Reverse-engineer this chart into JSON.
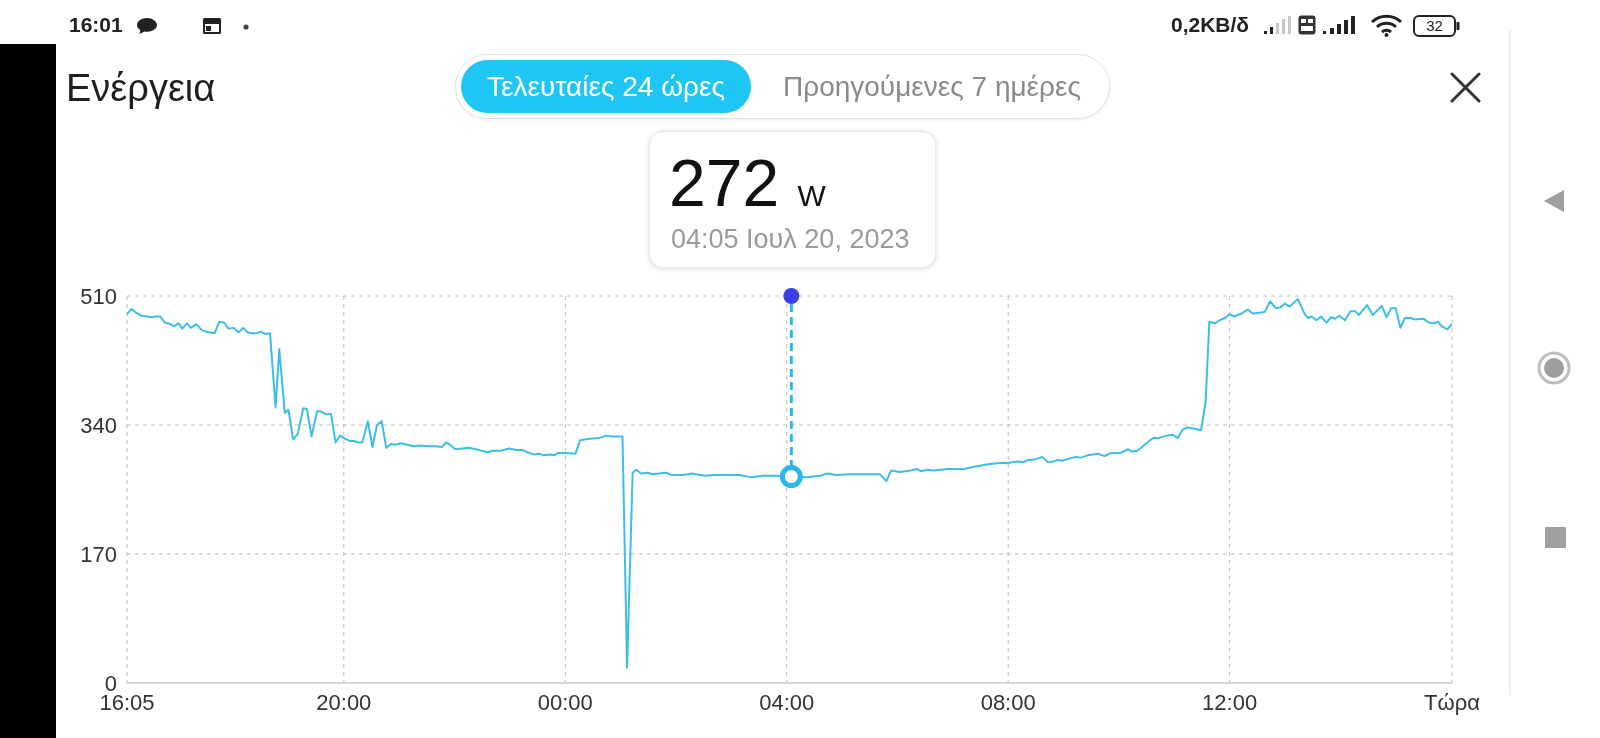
{
  "chart_data": {
    "type": "line",
    "title": "Ενέργεια",
    "annotations": [
      "16:01",
      "0,2KB/δ",
      "32",
      "Τελευταίες 24 ώρες",
      "Προηγούμενες 7 ημέρες",
      "272 W",
      "04:05 Ιουλ 20, 2023"
    ],
    "x": [
      "2023-07-19T16:05",
      "2023-07-19T16:10",
      "2023-07-19T16:16",
      "2023-07-19T16:21",
      "2023-07-19T16:26",
      "2023-07-19T16:32",
      "2023-07-19T16:35",
      "2023-07-19T16:41",
      "2023-07-19T16:46",
      "2023-07-19T16:52",
      "2023-07-19T16:56",
      "2023-07-19T17:01",
      "2023-07-19T17:05",
      "2023-07-19T17:10",
      "2023-07-19T17:14",
      "2023-07-19T17:20",
      "2023-07-19T17:26",
      "2023-07-19T17:31",
      "2023-07-19T17:40",
      "2023-07-19T17:45",
      "2023-07-19T17:50",
      "2023-07-19T17:55",
      "2023-07-19T18:01",
      "2023-07-19T18:06",
      "2023-07-19T18:11",
      "2023-07-19T18:16",
      "2023-07-19T18:20",
      "2023-07-19T18:26",
      "2023-07-19T18:30",
      "2023-07-19T18:35",
      "2023-07-19T18:40",
      "2023-07-19T18:46",
      "2023-07-19T18:50",
      "2023-07-19T18:56",
      "2023-07-19T19:00",
      "2023-07-19T19:05",
      "2023-07-19T19:10",
      "2023-07-19T19:16",
      "2023-07-19T19:20",
      "2023-07-19T19:25",
      "2023-07-19T19:31",
      "2023-07-19T19:35",
      "2023-07-19T19:41",
      "2023-07-19T19:46",
      "2023-07-19T19:51",
      "2023-07-19T19:56",
      "2023-07-19T20:01",
      "2023-07-19T20:06",
      "2023-07-19T20:11",
      "2023-07-19T20:16",
      "2023-07-19T20:20",
      "2023-07-19T20:26",
      "2023-07-19T20:31",
      "2023-07-19T20:36",
      "2023-07-19T20:41",
      "2023-07-19T20:46",
      "2023-07-19T20:51",
      "2023-07-19T20:56",
      "2023-07-19T21:02",
      "2023-07-19T21:09",
      "2023-07-19T21:16",
      "2023-07-19T21:23",
      "2023-07-19T21:31",
      "2023-07-19T21:40",
      "2023-07-19T21:46",
      "2023-07-19T21:51",
      "2023-07-19T21:56",
      "2023-07-19T22:01",
      "2023-07-19T22:08",
      "2023-07-19T22:16",
      "2023-07-19T22:23",
      "2023-07-19T22:29",
      "2023-07-19T22:36",
      "2023-07-19T22:41",
      "2023-07-19T22:50",
      "2023-07-19T22:59",
      "2023-07-19T23:07",
      "2023-07-19T23:14",
      "2023-07-19T23:19",
      "2023-07-19T23:26",
      "2023-07-19T23:32",
      "2023-07-19T23:37",
      "2023-07-19T23:43",
      "2023-07-19T23:48",
      "2023-07-19T23:52",
      "2023-07-20T00:00",
      "2023-07-20T00:11",
      "2023-07-20T00:16",
      "2023-07-20T00:26",
      "2023-07-20T00:37",
      "2023-07-20T00:44",
      "2023-07-20T00:50",
      "2023-07-20T01:02",
      "2023-07-20T01:07",
      "2023-07-20T01:13",
      "2023-07-20T01:17",
      "2023-07-20T01:22",
      "2023-07-20T01:29",
      "2023-07-20T01:35",
      "2023-07-20T01:49",
      "2023-07-20T01:56",
      "2023-07-20T02:08",
      "2023-07-20T02:17",
      "2023-07-20T02:31",
      "2023-07-20T02:42",
      "2023-07-20T02:58",
      "2023-07-20T03:09",
      "2023-07-20T03:22",
      "2023-07-20T03:34",
      "2023-07-20T03:49",
      "2023-07-20T04:05",
      "2023-07-20T04:22",
      "2023-07-20T04:36",
      "2023-07-20T04:44",
      "2023-07-20T04:54",
      "2023-07-20T05:08",
      "2023-07-20T05:23",
      "2023-07-20T05:41",
      "2023-07-20T05:48",
      "2023-07-20T05:53",
      "2023-07-20T06:03",
      "2023-07-20T06:14",
      "2023-07-20T06:21",
      "2023-07-20T06:26",
      "2023-07-20T06:32",
      "2023-07-20T06:39",
      "2023-07-20T06:54",
      "2023-07-20T07:12",
      "2023-07-20T07:23",
      "2023-07-20T07:37",
      "2023-07-20T07:50",
      "2023-07-20T08:00",
      "2023-07-20T08:10",
      "2023-07-20T08:17",
      "2023-07-20T08:22",
      "2023-07-20T08:30",
      "2023-07-20T08:37",
      "2023-07-20T08:43",
      "2023-07-20T08:49",
      "2023-07-20T08:54",
      "2023-07-20T08:59",
      "2023-07-20T09:04",
      "2023-07-20T09:13",
      "2023-07-20T09:19",
      "2023-07-20T09:26",
      "2023-07-20T09:38",
      "2023-07-20T09:44",
      "2023-07-20T09:51",
      "2023-07-20T10:01",
      "2023-07-20T10:10",
      "2023-07-20T10:14",
      "2023-07-20T10:20",
      "2023-07-20T10:26",
      "2023-07-20T10:31",
      "2023-07-20T10:37",
      "2023-07-20T10:44",
      "2023-07-20T10:51",
      "2023-07-20T10:58",
      "2023-07-20T11:04",
      "2023-07-20T11:09",
      "2023-07-20T11:14",
      "2023-07-20T11:22",
      "2023-07-20T11:29",
      "2023-07-20T11:34",
      "2023-07-20T11:38",
      "2023-07-20T11:44",
      "2023-07-20T11:49",
      "2023-07-20T11:55",
      "2023-07-20T12:00",
      "2023-07-20T12:05",
      "2023-07-20T12:13",
      "2023-07-20T12:20",
      "2023-07-20T12:25",
      "2023-07-20T12:32",
      "2023-07-20T12:38",
      "2023-07-20T12:44",
      "2023-07-20T12:50",
      "2023-07-20T12:55",
      "2023-07-20T13:00",
      "2023-07-20T13:05",
      "2023-07-20T13:14",
      "2023-07-20T13:21",
      "2023-07-20T13:25",
      "2023-07-20T13:29",
      "2023-07-20T13:34",
      "2023-07-20T13:39",
      "2023-07-20T13:45",
      "2023-07-20T13:50",
      "2023-07-20T13:54",
      "2023-07-20T13:59",
      "2023-07-20T14:05",
      "2023-07-20T14:11",
      "2023-07-20T14:16",
      "2023-07-20T14:20",
      "2023-07-20T14:29",
      "2023-07-20T14:35",
      "2023-07-20T14:45",
      "2023-07-20T14:50",
      "2023-07-20T14:55",
      "2023-07-20T15:00",
      "2023-07-20T15:05",
      "2023-07-20T15:10",
      "2023-07-20T15:16",
      "2023-07-20T15:21",
      "2023-07-20T15:30",
      "2023-07-20T15:36",
      "2023-07-20T15:41",
      "2023-07-20T15:46",
      "2023-07-20T15:50",
      "2023-07-20T15:56",
      "2023-07-20T16:00"
    ],
    "values": [
      486,
      493,
      487,
      484,
      483,
      482,
      483,
      483,
      475,
      473,
      470,
      474,
      467,
      474,
      468,
      473,
      465,
      463,
      461,
      476,
      475,
      467,
      468,
      462,
      468,
      462,
      461,
      461,
      463,
      460,
      461,
      363,
      440,
      356,
      360,
      321,
      328,
      362,
      361,
      325,
      358,
      358,
      354,
      355,
      317,
      326,
      322,
      319,
      319,
      317,
      317,
      345,
      311,
      340,
      345,
      310,
      315,
      314,
      316,
      314,
      312,
      313,
      312,
      312,
      311,
      317,
      313,
      308,
      309,
      310,
      308,
      306,
      304,
      306,
      306,
      309,
      307,
      307,
      304,
      301,
      302,
      300,
      301,
      300,
      303,
      303,
      302,
      320,
      322,
      323,
      326,
      325,
      325,
      20,
      277,
      281,
      276,
      277,
      275,
      277,
      274,
      274,
      276,
      273,
      274,
      274,
      274,
      271,
      273,
      273,
      272,
      271,
      273,
      276,
      274,
      275,
      275,
      275,
      266,
      280,
      278,
      280,
      282,
      279,
      281,
      280,
      282,
      282,
      285,
      288,
      290,
      290,
      292,
      291,
      294,
      295,
      298,
      291,
      292,
      294,
      293,
      295,
      298,
      297,
      300,
      302,
      299,
      303,
      303,
      308,
      305,
      306,
      312,
      317,
      323,
      323,
      326,
      327,
      323,
      334,
      337,
      335,
      333,
      371,
      476,
      474,
      478,
      481,
      486,
      483,
      487,
      492,
      487,
      488,
      489,
      503,
      494,
      495,
      500,
      496,
      506,
      487,
      481,
      483,
      478,
      483,
      475,
      482,
      480,
      484,
      478,
      490,
      490,
      485,
      498,
      485,
      497,
      482,
      494,
      494,
      468,
      481,
      481,
      479,
      480,
      475,
      474,
      476,
      470,
      466,
      472
    ],
    "color": "#3dbfe3",
    "xlim": [
      "2023-07-19T16:05",
      "2023-07-20T16:01"
    ],
    "xticks": [
      {
        "value": "2023-07-19T16:05",
        "label": "16:05"
      },
      {
        "value": "2023-07-19T20:00",
        "label": "20:00"
      },
      {
        "value": "2023-07-20T00:00",
        "label": "00:00"
      },
      {
        "value": "2023-07-20T04:00",
        "label": "04:00"
      },
      {
        "value": "2023-07-20T08:00",
        "label": "08:00"
      },
      {
        "value": "2023-07-20T12:00",
        "label": "12:00"
      },
      {
        "value": "2023-07-20T16:01",
        "label": "Τώρα"
      }
    ],
    "ylim": [
      0,
      510
    ],
    "yticks": [
      0,
      170,
      340,
      510
    ],
    "grid": true,
    "marker": "none",
    "ref_lines": [
      {
        "axis": "x",
        "value": "2023-07-20T04:05",
        "color": "#2cb7ea",
        "line_style": "dashed"
      }
    ]
  }
}
